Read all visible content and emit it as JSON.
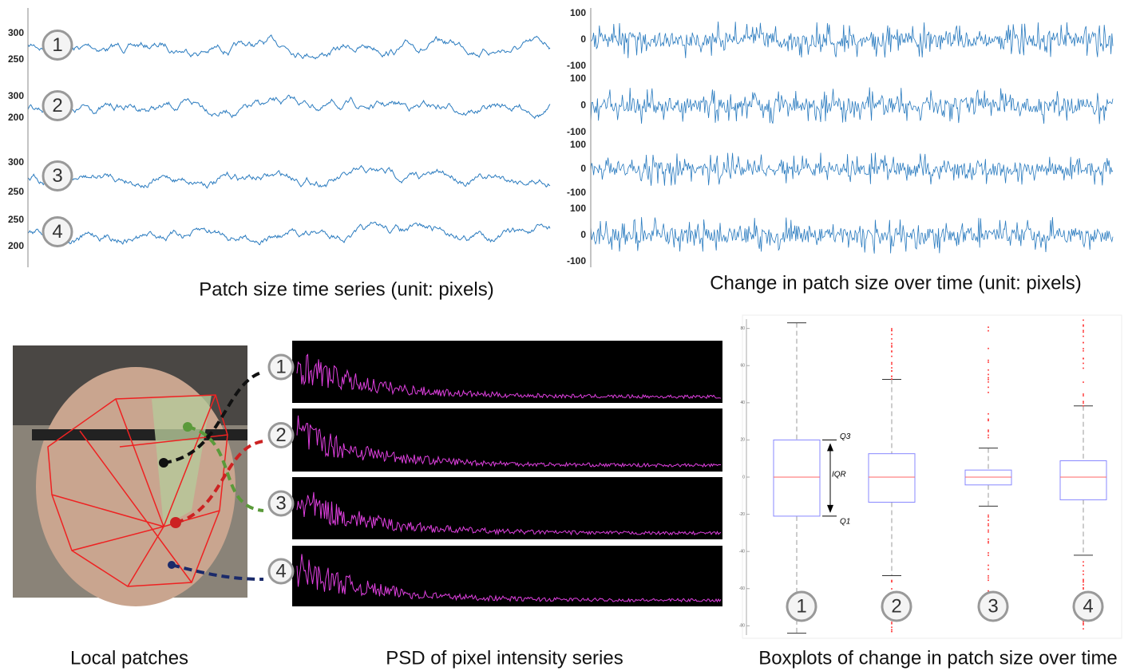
{
  "top_left": {
    "caption": "Patch size time series (unit: pixels)",
    "rows": [
      {
        "label": "1",
        "ticks": [
          300,
          250
        ]
      },
      {
        "label": "2",
        "ticks": [
          300,
          200
        ]
      },
      {
        "label": "3",
        "ticks": [
          300,
          250
        ]
      },
      {
        "label": "4",
        "ticks": [
          250,
          200
        ]
      }
    ]
  },
  "top_right": {
    "caption": "Change in patch size over time (unit: pixels)",
    "rows": [
      {
        "ticks": [
          100,
          0,
          -100
        ]
      },
      {
        "ticks": [
          100,
          0,
          -100
        ]
      },
      {
        "ticks": [
          100,
          0,
          -100
        ]
      },
      {
        "ticks": [
          100,
          0,
          -100
        ]
      }
    ]
  },
  "face": {
    "caption": "Local patches"
  },
  "psd": {
    "caption": "PSD of pixel intensity series",
    "labels": [
      "1",
      "2",
      "3",
      "4"
    ]
  },
  "boxplot": {
    "caption": "Boxplots of change in patch size over time",
    "annotations": {
      "q3": "Q3",
      "iqr": "IQR",
      "q1": "Q1"
    },
    "ylim": [
      -85,
      85
    ],
    "yticks": [
      80,
      60,
      40,
      20,
      0,
      -20,
      -40,
      -60,
      -80
    ],
    "boxes": [
      {
        "label": "1",
        "whisker_low": -84,
        "q1": -21,
        "median": 0,
        "q3": 20,
        "whisker_high": 83
      },
      {
        "label": "2",
        "whisker_low": -53,
        "q1": -13.5,
        "median": 0,
        "q3": 12.6,
        "whisker_high": 52.6
      },
      {
        "label": "3",
        "whisker_low": -15.6,
        "q1": -4.2,
        "median": 0,
        "q3": 3.8,
        "whisker_high": 15.6
      },
      {
        "label": "4",
        "whisker_low": -42,
        "q1": -12.2,
        "median": 0,
        "q3": 8.8,
        "whisker_high": 38.3
      }
    ]
  }
}
